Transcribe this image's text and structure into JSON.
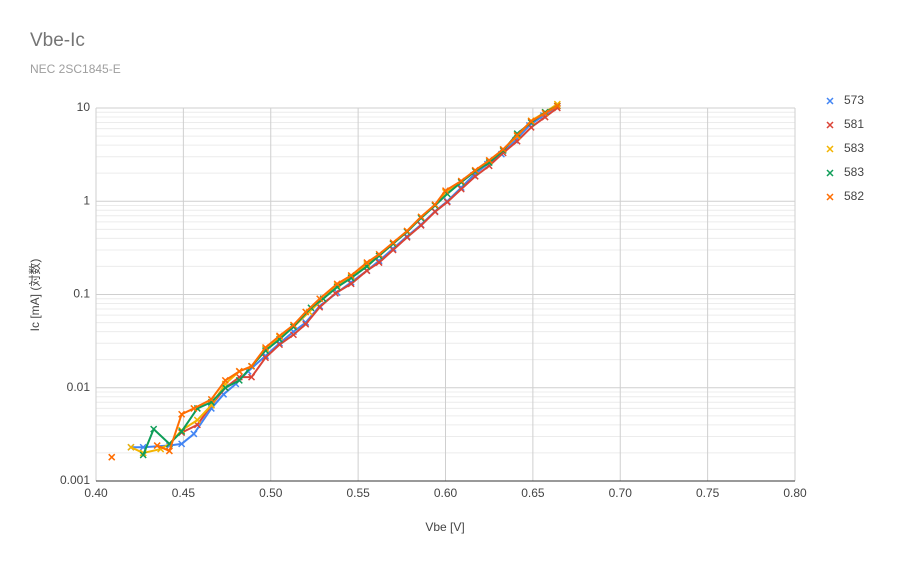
{
  "chart_data": {
    "type": "line",
    "title": "Vbe-Ic",
    "subtitle": "NEC 2SC1845-E",
    "x_label": "Vbe [V]",
    "y_label": "Ic [mA] (対数)",
    "y_log": true,
    "grid": true,
    "legend_position": "right",
    "xlim": [
      0.4,
      0.8
    ],
    "xticks": [
      {
        "value": 0.4,
        "label": "0.40"
      },
      0.45,
      {
        "value": 0.5,
        "label": "0.50"
      },
      0.55,
      {
        "value": 0.6,
        "label": "0.60"
      },
      0.65,
      {
        "value": 0.7,
        "label": "0.70"
      },
      0.75,
      {
        "value": 0.8,
        "label": "0.80"
      }
    ],
    "ylim": [
      0.001,
      10
    ],
    "yticks": [
      0.001,
      0.01,
      0.1,
      1,
      10
    ],
    "series": [
      {
        "name": "573",
        "color": "#4285f4",
        "x": [
          0.42,
          0.427,
          0.442,
          0.449,
          0.456,
          0.466,
          0.473,
          0.48,
          0.487,
          0.497,
          0.505,
          0.513,
          0.52,
          0.528,
          0.538,
          0.546,
          0.555,
          0.562,
          0.57,
          0.578,
          0.586,
          0.594,
          0.601,
          0.609,
          0.616,
          0.624,
          0.632,
          0.64,
          0.648,
          0.656,
          0.664
        ],
        "values": [
          0.0023,
          0.0023,
          0.0024,
          0.0025,
          0.0032,
          0.006,
          0.0085,
          0.011,
          0.015,
          0.022,
          0.03,
          0.04,
          0.05,
          0.075,
          0.105,
          0.135,
          0.18,
          0.23,
          0.31,
          0.42,
          0.56,
          0.78,
          1.0,
          1.4,
          1.9,
          2.5,
          3.2,
          4.5,
          6.5,
          8.3,
          10.5
        ]
      },
      {
        "name": "581",
        "color": "#db4437",
        "x": [
          0.449,
          0.458,
          0.466,
          0.474,
          0.482,
          0.489,
          0.497,
          0.505,
          0.513,
          0.52,
          0.528,
          0.537,
          0.546,
          0.555,
          0.562,
          0.57,
          0.578,
          0.586,
          0.594,
          0.601,
          0.609,
          0.617,
          0.625,
          0.633,
          0.641,
          0.649,
          0.657,
          0.664
        ],
        "values": [
          0.0033,
          0.004,
          0.0065,
          0.01,
          0.013,
          0.013,
          0.021,
          0.029,
          0.037,
          0.048,
          0.073,
          0.103,
          0.13,
          0.18,
          0.22,
          0.3,
          0.41,
          0.55,
          0.77,
          0.98,
          1.35,
          1.85,
          2.4,
          3.3,
          4.4,
          6.2,
          8.0,
          10.0
        ]
      },
      {
        "name": "583",
        "color": "#f4b400",
        "x": [
          0.42,
          0.427,
          0.437,
          0.442,
          0.449,
          0.458,
          0.466,
          0.474,
          0.482,
          0.489,
          0.497,
          0.505,
          0.513,
          0.522,
          0.53,
          0.538,
          0.546,
          0.555,
          0.562,
          0.57,
          0.578,
          0.586,
          0.594,
          0.6,
          0.609,
          0.617,
          0.625,
          0.633,
          0.641,
          0.649,
          0.657,
          0.664
        ],
        "values": [
          0.0023,
          0.002,
          0.0022,
          0.0025,
          0.0035,
          0.0045,
          0.0065,
          0.011,
          0.015,
          0.017,
          0.026,
          0.035,
          0.045,
          0.065,
          0.09,
          0.125,
          0.155,
          0.21,
          0.26,
          0.35,
          0.48,
          0.68,
          0.9,
          1.25,
          1.6,
          2.1,
          2.7,
          3.6,
          5.0,
          7.3,
          9.0,
          11.0
        ]
      },
      {
        "name": "583",
        "color": "#0f9d58",
        "x": [
          0.427,
          0.433,
          0.442,
          0.449,
          0.458,
          0.466,
          0.474,
          0.482,
          0.489,
          0.497,
          0.505,
          0.513,
          0.523,
          0.53,
          0.538,
          0.546,
          0.555,
          0.562,
          0.57,
          0.578,
          0.586,
          0.594,
          0.601,
          0.609,
          0.617,
          0.625,
          0.633,
          0.641,
          0.649,
          0.657,
          0.664
        ],
        "values": [
          0.0019,
          0.0036,
          0.0025,
          0.0034,
          0.006,
          0.007,
          0.01,
          0.012,
          0.017,
          0.025,
          0.033,
          0.045,
          0.072,
          0.09,
          0.12,
          0.15,
          0.2,
          0.26,
          0.35,
          0.47,
          0.66,
          0.9,
          1.2,
          1.6,
          2.1,
          2.6,
          3.5,
          5.3,
          7.0,
          9.0,
          10.5
        ]
      },
      {
        "name": "582",
        "color": "#ff6d01",
        "x": [
          0.409,
          0.42,
          0.435,
          0.442,
          0.449,
          0.456,
          0.466,
          0.474,
          0.482,
          0.489,
          0.497,
          0.505,
          0.513,
          0.52,
          0.528,
          0.538,
          0.546,
          0.555,
          0.562,
          0.57,
          0.578,
          0.586,
          0.594,
          0.6,
          0.609,
          0.617,
          0.625,
          0.633,
          0.641,
          0.649,
          0.657,
          0.664
        ],
        "values": [
          0.0018,
          null,
          0.0024,
          0.0021,
          0.0052,
          0.006,
          0.0075,
          0.012,
          0.015,
          0.017,
          0.027,
          0.036,
          0.047,
          0.065,
          0.09,
          0.13,
          0.16,
          0.22,
          0.27,
          0.36,
          0.48,
          0.68,
          0.92,
          1.3,
          1.65,
          2.15,
          2.75,
          3.6,
          5.1,
          7.2,
          8.8,
          10.5
        ]
      }
    ]
  }
}
